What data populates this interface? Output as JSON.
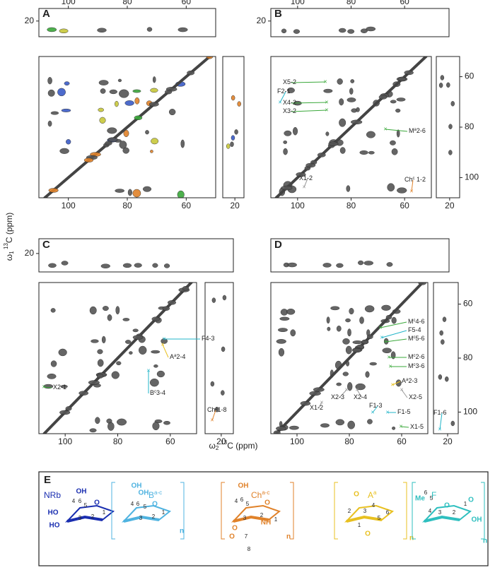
{
  "axis_labels": {
    "x": {
      "symbol": "ω",
      "sub": "2",
      "sup": "13",
      "tail": "C (ppm)"
    },
    "y": {
      "symbol": "ω",
      "sub": "1",
      "sup": "13",
      "tail": "C (ppm)"
    }
  },
  "xlim": [
    110,
    50
  ],
  "ylim": [
    52,
    108
  ],
  "strip_ylim": [
    12,
    30
  ],
  "side_xlim": [
    28,
    14
  ],
  "panels": [
    {
      "label": "A",
      "top_x_ticks": [
        100,
        80,
        60
      ],
      "strip_y_ticks": [
        20
      ],
      "bottom_x_ticks": [
        100,
        80,
        60
      ],
      "side_x_ticks": [
        20
      ]
    },
    {
      "label": "B",
      "top_x_ticks": [
        100,
        80,
        60
      ],
      "strip_y_ticks": [
        20
      ],
      "side_y_ticks": [
        60,
        80,
        100
      ],
      "bottom_x_ticks": [
        100,
        80,
        60
      ],
      "side_x_ticks": [
        20
      ],
      "annotations": [
        {
          "text": "X5-2"
        },
        {
          "text": "F2-1"
        },
        {
          "text": "X4-2"
        },
        {
          "text": "X3-2"
        },
        {
          "text": "M",
          "sup": "a",
          "tail": "2-6"
        },
        {
          "text": "X1-2"
        },
        {
          "text": "Ch",
          "sup": "c",
          "tail": " 1-2"
        }
      ]
    },
    {
      "label": "C",
      "strip_y_ticks": [
        20
      ],
      "bottom_x_ticks": [
        100,
        80,
        60
      ],
      "side_x_ticks": [
        20
      ],
      "annotations": [
        {
          "text": "F4-3"
        },
        {
          "text": "A",
          "sup": "a",
          "tail": "2-4"
        },
        {
          "text": "B",
          "sup": "c",
          "tail": "3-4"
        },
        {
          "text": "X2-1"
        },
        {
          "text": "Ch",
          "sup": "c",
          "tail": "1-8"
        }
      ]
    },
    {
      "label": "D",
      "side_y_ticks": [
        60,
        80,
        100
      ],
      "bottom_x_ticks": [
        100,
        80,
        60
      ],
      "side_x_ticks": [
        20
      ],
      "annotations": [
        {
          "text": "M",
          "sup": "c",
          "tail": "4-6"
        },
        {
          "text": "F5-4"
        },
        {
          "text": "M",
          "sup": "c",
          "tail": "5-6"
        },
        {
          "text": "M",
          "sup": "c",
          "tail": "2-6"
        },
        {
          "text": "M",
          "sup": "c",
          "tail": "3-6"
        },
        {
          "text": "A",
          "sup": "a",
          "tail": "2-3"
        },
        {
          "text": "X2-3"
        },
        {
          "text": "X2-4"
        },
        {
          "text": "X2-5"
        },
        {
          "text": "F1-3"
        },
        {
          "text": "F1-5"
        },
        {
          "text": "X1-2"
        },
        {
          "text": "X1-5"
        },
        {
          "text": "F1-6"
        }
      ]
    }
  ],
  "panel_e": {
    "label": "E",
    "structures": [
      {
        "name": "NRb",
        "atoms": [
          "OH",
          "4",
          "6",
          "5",
          "HO",
          "3",
          "2",
          "1",
          "HO",
          "O"
        ]
      },
      {
        "name": "B",
        "sup": "a-c",
        "atoms": [
          "OH",
          "OH",
          "4",
          "6",
          "5",
          "3",
          "2",
          "1",
          "O",
          "n"
        ]
      },
      {
        "name": "Ch",
        "sup": "a-c",
        "atoms": [
          "OH",
          "4",
          "6",
          "5",
          "O",
          "3",
          "2",
          "NH",
          "1",
          "O",
          "7",
          "O",
          "8",
          "n"
        ]
      },
      {
        "name": "A",
        "sup": "a",
        "atoms": [
          "O",
          "2",
          "3",
          "4",
          "1",
          "5",
          "6",
          "O",
          "n"
        ]
      },
      {
        "name": "F",
        "atoms": [
          "Me",
          "6",
          "5",
          "O",
          "4",
          "3",
          "2",
          "1",
          "O",
          "OH",
          "n"
        ]
      }
    ]
  }
}
